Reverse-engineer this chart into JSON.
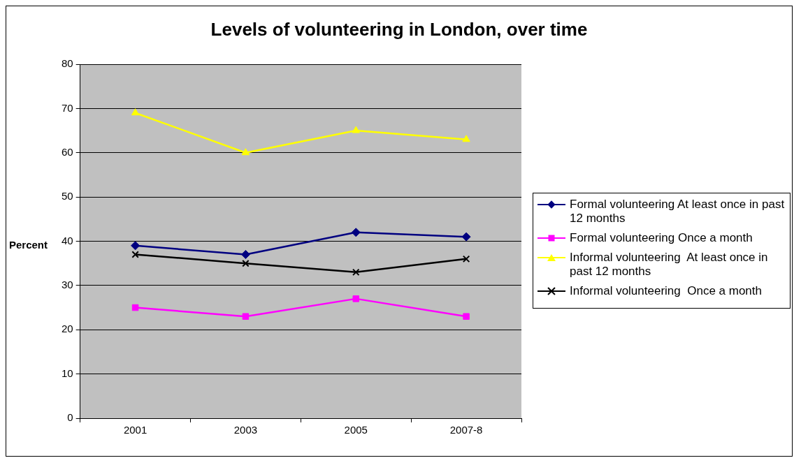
{
  "chart_data": {
    "type": "line",
    "title": "Levels of volunteering in London, over time",
    "ylabel": "Percent",
    "categories": [
      "2001",
      "2003",
      "2005",
      "2007-8"
    ],
    "series": [
      {
        "name": "Formal volunteering At least once in past 12 months",
        "color": "#000080",
        "marker": "diamond",
        "values": [
          39,
          37,
          42,
          41
        ]
      },
      {
        "name": "Formal volunteering Once a month",
        "color": "#ff00ff",
        "marker": "square",
        "values": [
          25,
          23,
          27,
          23
        ]
      },
      {
        "name": "Informal volunteering  At least once in past 12 months",
        "color": "#ffff00",
        "marker": "triangle",
        "values": [
          69,
          60,
          65,
          63
        ]
      },
      {
        "name": "Informal volunteering  Once a month",
        "color": "#000000",
        "marker": "cross",
        "values": [
          37,
          35,
          33,
          36
        ]
      }
    ],
    "ylim": [
      0,
      80
    ],
    "yticks": [
      0,
      10,
      20,
      30,
      40,
      50,
      60,
      70,
      80
    ],
    "grid": "y",
    "legend": "right",
    "line_style": "solid"
  }
}
